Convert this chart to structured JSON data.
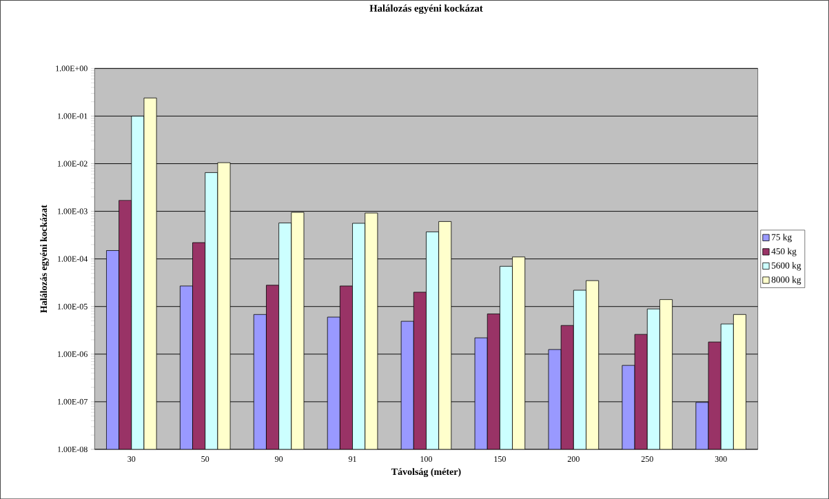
{
  "chart_data": {
    "type": "bar",
    "title": "Halálozás egyéni kockázat",
    "xlabel": "Távolság (méter)",
    "ylabel": "Halálozás egyéni kockázat",
    "categories": [
      "30",
      "50",
      "90",
      "91",
      "100",
      "150",
      "200",
      "250",
      "300"
    ],
    "series": [
      {
        "name": "75 kg",
        "color": "#9999ff",
        "values": [
          0.00015,
          2.7e-05,
          6.8e-06,
          6e-06,
          4.9e-06,
          2.2e-06,
          1.25e-06,
          5.8e-07,
          9.7e-08
        ]
      },
      {
        "name": "450 kg",
        "color": "#993366",
        "values": [
          0.0017,
          0.00022,
          2.8e-05,
          2.7e-05,
          2e-05,
          7e-06,
          4e-06,
          2.6e-06,
          1.8e-06
        ]
      },
      {
        "name": "5600 kg",
        "color": "#ccffff",
        "values": [
          0.1,
          0.0065,
          0.00057,
          0.00056,
          0.00037,
          7e-05,
          2.2e-05,
          8.9e-06,
          4.3e-06
        ]
      },
      {
        "name": "8000 kg",
        "color": "#ffffcc",
        "values": [
          0.24,
          0.0105,
          0.00095,
          0.00092,
          0.00061,
          0.00011,
          3.5e-05,
          1.4e-05,
          6.8e-06
        ]
      }
    ],
    "log": "y",
    "ylim": [
      1e-08,
      1
    ],
    "yticks": [
      {
        "value": 1e-08,
        "label": "1.00E-08"
      },
      {
        "value": 1e-07,
        "label": "1.00E-07"
      },
      {
        "value": 1e-06,
        "label": "1.00E-06"
      },
      {
        "value": 1e-05,
        "label": "1.00E-05"
      },
      {
        "value": 0.0001,
        "label": "1.00E-04"
      },
      {
        "value": 0.001,
        "label": "1.00E-03"
      },
      {
        "value": 0.01,
        "label": "1.00E-02"
      },
      {
        "value": 0.1,
        "label": "1.00E-01"
      },
      {
        "value": 1,
        "label": "1.00E+00"
      }
    ],
    "grid": "y",
    "legend": "right"
  }
}
